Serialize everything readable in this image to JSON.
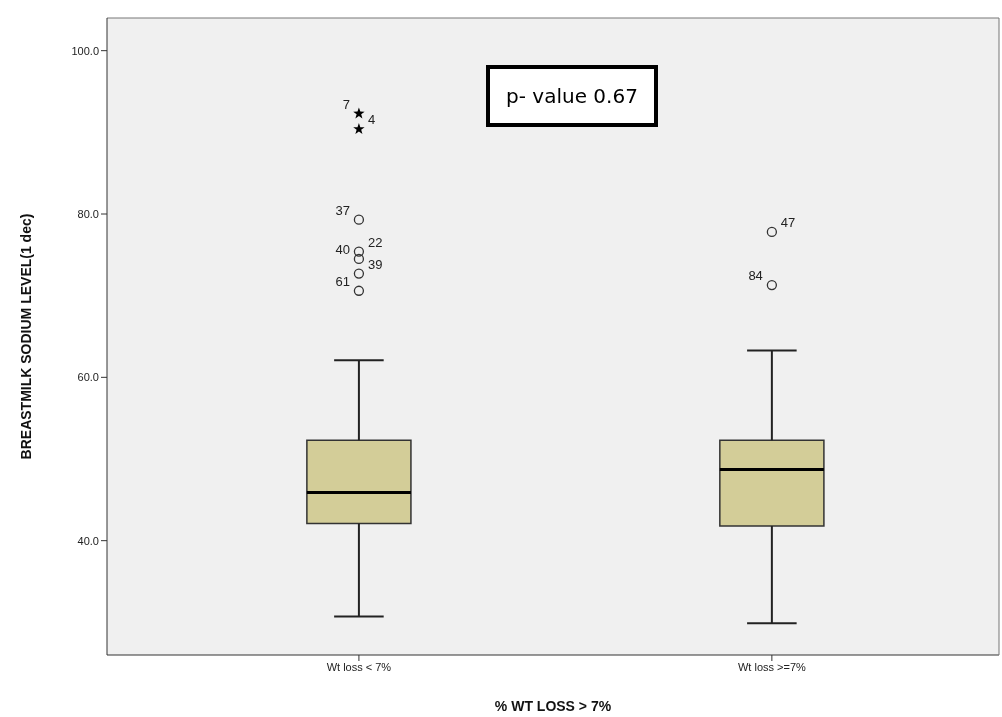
{
  "chart_data": {
    "type": "box",
    "xlabel": "% WT LOSS > 7%",
    "ylabel": "BREASTMILK SODIUM LEVEL(1 dec)",
    "categories": [
      "Wt loss < 7%",
      "Wt loss >=7%"
    ],
    "color": "#d3cd98",
    "boxes": [
      {
        "low": 30.7,
        "q1": 42.1,
        "median": 45.9,
        "q3": 52.3,
        "high": 62.1
      },
      {
        "low": 29.9,
        "q1": 41.8,
        "median": 48.7,
        "q3": 52.3,
        "high": 63.3
      }
    ],
    "series": [
      {
        "type": "scatter",
        "marker": "star",
        "color": "#000000",
        "x": [
          "Wt loss < 7%",
          "Wt loss < 7%"
        ],
        "values": [
          92.3,
          90.4
        ]
      },
      {
        "type": "scatter",
        "marker": "circle",
        "color": "#333333",
        "x": [
          "Wt loss < 7%",
          "Wt loss < 7%",
          "Wt loss < 7%",
          "Wt loss < 7%",
          "Wt loss < 7%",
          "Wt loss >=7%",
          "Wt loss >=7%"
        ],
        "values": [
          79.3,
          75.4,
          74.5,
          72.7,
          70.6,
          77.8,
          71.3
        ]
      }
    ],
    "ylim": [
      26,
      104
    ],
    "yticks": [
      {
        "value": 40,
        "label": "40.0"
      },
      {
        "value": 60,
        "label": "60.0"
      },
      {
        "value": 80,
        "label": "80.0"
      },
      {
        "value": 100,
        "label": "100.0"
      }
    ],
    "grid": false,
    "legend": false,
    "annotations": [
      "p- value 0.67",
      {
        "text": "7",
        "x": "Wt loss < 7%",
        "y": 92.3
      },
      {
        "text": "4",
        "x": "Wt loss < 7%",
        "y": 90.4
      },
      {
        "text": "37",
        "x": "Wt loss < 7%",
        "y": 79.3
      },
      {
        "text": "22",
        "x": "Wt loss < 7%",
        "y": 75.4
      },
      {
        "text": "40",
        "x": "Wt loss < 7%",
        "y": 74.5
      },
      {
        "text": "39",
        "x": "Wt loss < 7%",
        "y": 72.7
      },
      {
        "text": "61",
        "x": "Wt loss < 7%",
        "y": 70.6
      },
      {
        "text": "47",
        "x": "Wt loss >=7%",
        "y": 77.8
      },
      {
        "text": "84",
        "x": "Wt loss >=7%",
        "y": 71.3
      }
    ]
  }
}
